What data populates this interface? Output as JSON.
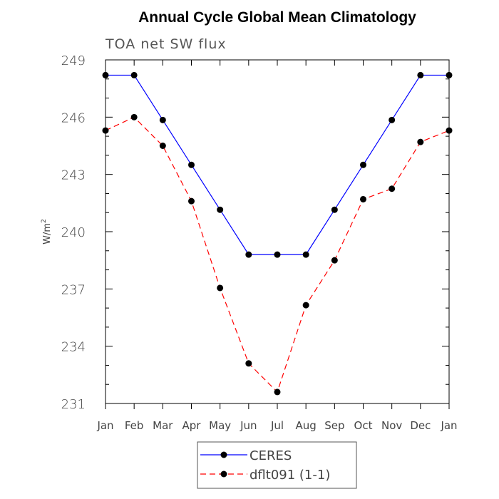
{
  "chart_data": {
    "type": "line",
    "title": "Annual Cycle Global Mean Climatology",
    "subtitle": "TOA net SW flux",
    "xlabel": "",
    "ylabel": "W/m",
    "ylabel_sup": "2",
    "categories": [
      "Jan",
      "Feb",
      "Mar",
      "Apr",
      "May",
      "Jun",
      "Jul",
      "Aug",
      "Sep",
      "Oct",
      "Nov",
      "Dec",
      "Jan"
    ],
    "ylim": [
      231,
      249
    ],
    "yticks": [
      231,
      234,
      237,
      240,
      243,
      246,
      249
    ],
    "series": [
      {
        "name": "CERES",
        "color": "#0000ff",
        "dash": "solid",
        "values": [
          248.2,
          248.2,
          245.85,
          243.5,
          241.15,
          238.8,
          238.8,
          238.8,
          241.15,
          243.5,
          245.85,
          248.2,
          248.2
        ]
      },
      {
        "name": "dflt091 (1-1)",
        "color": "#ff0000",
        "dash": "dashed",
        "values": [
          245.3,
          246.0,
          244.5,
          241.6,
          237.05,
          233.1,
          231.6,
          236.15,
          238.5,
          241.7,
          242.25,
          244.7,
          245.3
        ]
      }
    ],
    "legend": "bottom-center",
    "grid": false
  }
}
